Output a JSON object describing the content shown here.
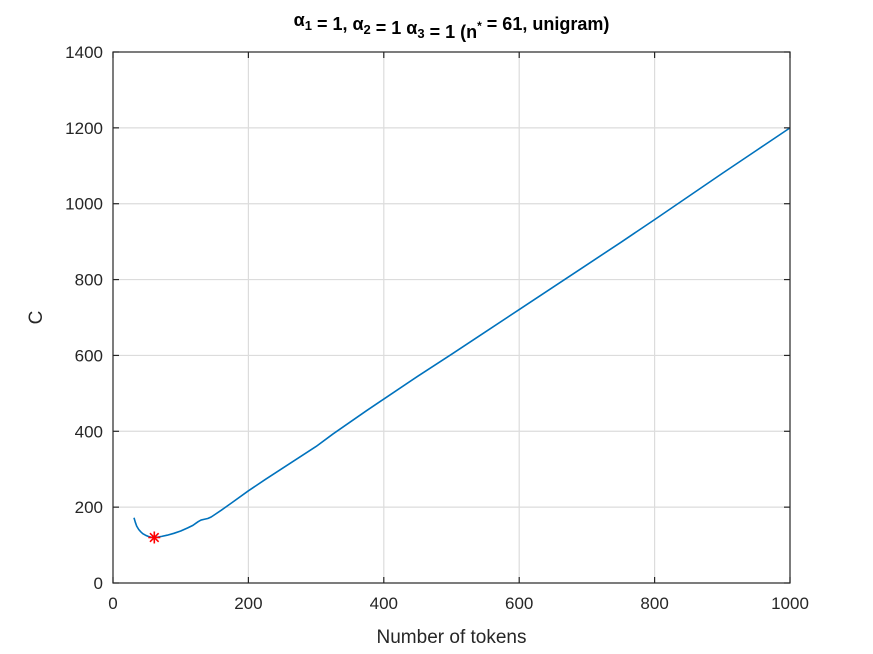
{
  "chart_data": {
    "type": "line",
    "title": {
      "parts": [
        {
          "text": "α",
          "sub": "1"
        },
        {
          "text": " = 1, α",
          "sub": "2"
        },
        {
          "text": " = 1 α",
          "sub": "3"
        },
        {
          "text": " = 1 (n",
          "sup": "*"
        },
        {
          "text": " = 61, unigram)"
        }
      ]
    },
    "xlabel": "Number of tokens",
    "ylabel": "C",
    "xlim": [
      0,
      1000
    ],
    "ylim": [
      0,
      1400
    ],
    "xticks": [
      0,
      200,
      400,
      600,
      800,
      1000
    ],
    "yticks": [
      0,
      200,
      400,
      600,
      800,
      1000,
      1200,
      1400
    ],
    "grid": true,
    "series": [
      {
        "color": "#0072bd",
        "x": [
          31,
          33,
          35,
          38,
          41,
          44,
          48,
          52,
          56,
          61,
          66,
          72,
          80,
          90,
          100,
          110,
          118,
          122,
          126,
          130,
          135,
          140,
          145,
          150,
          160,
          175,
          200,
          225,
          250,
          275,
          300,
          325,
          350,
          375,
          400,
          450,
          500,
          550,
          600,
          650,
          700,
          750,
          800,
          850,
          900,
          950,
          1000
        ],
        "y": [
          172,
          160,
          150,
          141,
          135,
          130,
          126,
          123,
          121,
          120,
          121,
          123,
          126,
          131,
          137,
          145,
          152,
          157,
          162,
          166,
          168,
          170,
          174,
          180,
          192,
          211,
          243,
          273,
          302,
          331,
          360,
          393,
          424,
          455,
          485,
          545,
          603,
          662,
          721,
          780,
          839,
          898,
          958,
          1019,
          1080,
          1140,
          1200
        ]
      }
    ],
    "marker": {
      "x": 61,
      "y": 120,
      "symbol": "*",
      "color": "#ff0000"
    }
  }
}
